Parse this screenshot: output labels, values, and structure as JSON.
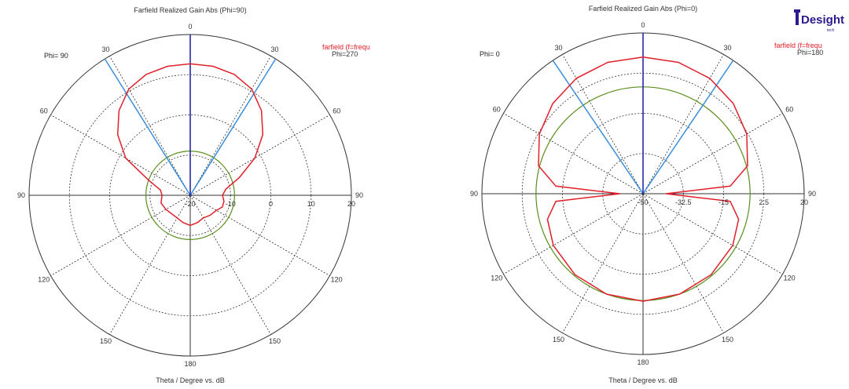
{
  "logo": {
    "text": "Desight",
    "sub": "tech",
    "color": "#2a1b8f"
  },
  "chart_data": [
    {
      "type": "polar",
      "title": "Farfield Realized Gain Abs (Phi=90)",
      "phi_label": "Phi= 90",
      "legend_text": "farfield (f=frequ",
      "legend_sub": "Phi=270",
      "xlabel": "Theta / Degree vs. dB",
      "angle_labels": [
        {
          "theta": 0,
          "text": "0"
        },
        {
          "theta": 30,
          "text": "30"
        },
        {
          "theta": 60,
          "text": "60"
        },
        {
          "theta": 90,
          "text": "90"
        },
        {
          "theta": 120,
          "text": "120"
        },
        {
          "theta": 150,
          "text": "150"
        },
        {
          "theta": 180,
          "text": "180"
        },
        {
          "theta": -30,
          "text": "30"
        },
        {
          "theta": -60,
          "text": "60"
        },
        {
          "theta": -90,
          "text": "90"
        },
        {
          "theta": -120,
          "text": "120"
        },
        {
          "theta": -150,
          "text": "150"
        }
      ],
      "r_range": [
        -20,
        20
      ],
      "r_ticks": [
        -20,
        -10,
        0,
        10,
        20
      ],
      "r_tick_labels": [
        "-20",
        "-10",
        "0",
        "10",
        "20"
      ],
      "beam_dir_deg": 0,
      "beamwidth_lines_deg": [
        -32,
        32
      ],
      "green_circle_db": -9,
      "series": [
        {
          "color": "#e0202a",
          "points": [
            [
              0,
              12.7
            ],
            [
              10,
              12.6
            ],
            [
              20,
              12.0
            ],
            [
              30,
              10.5
            ],
            [
              40,
              7.5
            ],
            [
              50,
              3.5
            ],
            [
              60,
              -1.5
            ],
            [
              70,
              -7
            ],
            [
              80,
              -11
            ],
            [
              90,
              -12
            ],
            [
              100,
              -11.5
            ],
            [
              110,
              -11.5
            ],
            [
              120,
              -12.5
            ],
            [
              135,
              -13
            ],
            [
              150,
              -13.5
            ],
            [
              165,
              -13
            ],
            [
              180,
              -12.5
            ],
            [
              195,
              -13
            ],
            [
              210,
              -13.5
            ],
            [
              225,
              -13.5
            ],
            [
              240,
              -13
            ],
            [
              255,
              -12.5
            ],
            [
              270,
              -13
            ],
            [
              280,
              -12.5
            ],
            [
              290,
              -9
            ],
            [
              300,
              -1.5
            ],
            [
              310,
              3.5
            ],
            [
              320,
              7.5
            ],
            [
              330,
              10.5
            ],
            [
              340,
              12.0
            ],
            [
              350,
              12.6
            ],
            [
              360,
              12.7
            ]
          ]
        }
      ]
    },
    {
      "type": "polar",
      "title": "Farfield Realized Gain Abs (Phi=0)",
      "phi_label": "Phi=  0",
      "legend_text": "farfield (f=frequ",
      "legend_sub": "Phi=180",
      "xlabel": "Theta / Degree vs. dB",
      "angle_labels": [
        {
          "theta": 0,
          "text": "0"
        },
        {
          "theta": 30,
          "text": "30"
        },
        {
          "theta": 60,
          "text": "60"
        },
        {
          "theta": 90,
          "text": "90"
        },
        {
          "theta": 120,
          "text": "120"
        },
        {
          "theta": 150,
          "text": "150"
        },
        {
          "theta": 180,
          "text": "180"
        },
        {
          "theta": -30,
          "text": "30"
        },
        {
          "theta": -60,
          "text": "60"
        },
        {
          "theta": -90,
          "text": "90"
        },
        {
          "theta": -120,
          "text": "120"
        },
        {
          "theta": -150,
          "text": "150"
        }
      ],
      "r_range": [
        -50,
        20
      ],
      "r_ticks": [
        -50,
        -32.5,
        -15,
        2.5,
        20
      ],
      "r_tick_labels": [
        "-50",
        "-32.5",
        "-15",
        "2.5",
        "20"
      ],
      "beam_dir_deg": 0,
      "beamwidth_lines_deg": [
        -34,
        34
      ],
      "green_circle_db": -3.5,
      "series": [
        {
          "color": "#e0202a",
          "points": [
            [
              0,
              9.5
            ],
            [
              15,
              9.2
            ],
            [
              30,
              8
            ],
            [
              45,
              5.5
            ],
            [
              60,
              2
            ],
            [
              75,
              -3
            ],
            [
              85,
              -12
            ],
            [
              90,
              -40
            ],
            [
              95,
              -12
            ],
            [
              105,
              -7
            ],
            [
              120,
              -5
            ],
            [
              140,
              -4
            ],
            [
              160,
              -3.5
            ],
            [
              180,
              -3.2
            ],
            [
              200,
              -3.5
            ],
            [
              220,
              -4
            ],
            [
              240,
              -5
            ],
            [
              255,
              -7
            ],
            [
              265,
              -12
            ],
            [
              270,
              -40
            ],
            [
              275,
              -12
            ],
            [
              285,
              -3
            ],
            [
              300,
              2
            ],
            [
              315,
              5.5
            ],
            [
              330,
              8
            ],
            [
              345,
              9.2
            ],
            [
              360,
              9.5
            ]
          ]
        }
      ]
    }
  ]
}
